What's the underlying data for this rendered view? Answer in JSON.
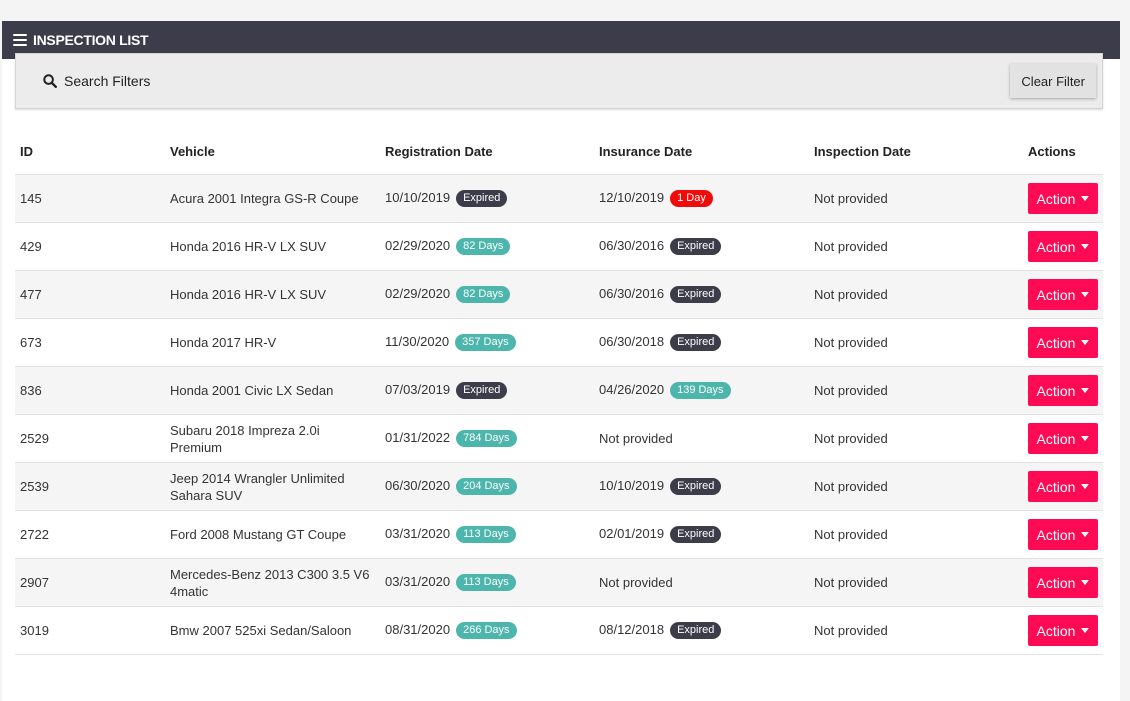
{
  "header": {
    "title": "INSPECTION LIST"
  },
  "filters": {
    "title": "Search Filters",
    "clear_label": "Clear Filter"
  },
  "table": {
    "columns": [
      "ID",
      "Vehicle",
      "Registration Date",
      "Insurance Date",
      "Inspection Date",
      "Actions"
    ],
    "action_label": "Action",
    "rows": [
      {
        "id": "145",
        "vehicle": "Acura 2001 Integra GS-R Coupe",
        "reg_date": "10/10/2019",
        "reg_badge": "Expired",
        "reg_status": "expired",
        "ins_date": "12/10/2019",
        "ins_badge": "1 Day",
        "ins_status": "urgent",
        "inspection": "Not provided"
      },
      {
        "id": "429",
        "vehicle": "Honda 2016 HR-V LX SUV",
        "reg_date": "02/29/2020",
        "reg_badge": "82 Days",
        "reg_status": "days",
        "ins_date": "06/30/2016",
        "ins_badge": "Expired",
        "ins_status": "expired",
        "inspection": "Not provided"
      },
      {
        "id": "477",
        "vehicle": "Honda 2016 HR-V LX SUV",
        "reg_date": "02/29/2020",
        "reg_badge": "82 Days",
        "reg_status": "days",
        "ins_date": "06/30/2016",
        "ins_badge": "Expired",
        "ins_status": "expired",
        "inspection": "Not provided"
      },
      {
        "id": "673",
        "vehicle": "Honda 2017 HR-V",
        "reg_date": "11/30/2020",
        "reg_badge": "357 Days",
        "reg_status": "days",
        "ins_date": "06/30/2018",
        "ins_badge": "Expired",
        "ins_status": "expired",
        "inspection": "Not provided"
      },
      {
        "id": "836",
        "vehicle": "Honda 2001 Civic LX Sedan",
        "reg_date": "07/03/2019",
        "reg_badge": "Expired",
        "reg_status": "expired",
        "ins_date": "04/26/2020",
        "ins_badge": "139 Days",
        "ins_status": "days",
        "inspection": "Not provided"
      },
      {
        "id": "2529",
        "vehicle": "Subaru 2018 Impreza 2.0i Premium",
        "reg_date": "01/31/2022",
        "reg_badge": "784 Days",
        "reg_status": "days",
        "ins_date": "Not provided",
        "ins_badge": "",
        "ins_status": "",
        "inspection": "Not provided"
      },
      {
        "id": "2539",
        "vehicle": "Jeep 2014 Wrangler Unlimited Sahara SUV",
        "reg_date": "06/30/2020",
        "reg_badge": "204 Days",
        "reg_status": "days",
        "ins_date": "10/10/2019",
        "ins_badge": "Expired",
        "ins_status": "expired",
        "inspection": "Not provided"
      },
      {
        "id": "2722",
        "vehicle": "Ford 2008 Mustang GT Coupe",
        "reg_date": "03/31/2020",
        "reg_badge": "113 Days",
        "reg_status": "days",
        "ins_date": "02/01/2019",
        "ins_badge": "Expired",
        "ins_status": "expired",
        "inspection": "Not provided"
      },
      {
        "id": "2907",
        "vehicle": "Mercedes-Benz 2013 C300 3.5 V6 4matic",
        "reg_date": "03/31/2020",
        "reg_badge": "113 Days",
        "reg_status": "days",
        "ins_date": "Not provided",
        "ins_badge": "",
        "ins_status": "",
        "inspection": "Not provided"
      },
      {
        "id": "3019",
        "vehicle": "Bmw 2007 525xi Sedan/Saloon",
        "reg_date": "08/31/2020",
        "reg_badge": "266 Days",
        "reg_status": "days",
        "ins_date": "08/12/2018",
        "ins_badge": "Expired",
        "ins_status": "expired",
        "inspection": "Not provided"
      }
    ]
  },
  "colors": {
    "header_bg": "#3d3c4a",
    "action_button": "#ff0a54",
    "badge_expired": "#3d3c4a",
    "badge_days": "#4db6ac",
    "badge_urgent": "#f00a0a"
  },
  "icons": {
    "menu": "hamburger-menu-icon",
    "search": "search-icon",
    "caret": "caret-down-icon"
  }
}
